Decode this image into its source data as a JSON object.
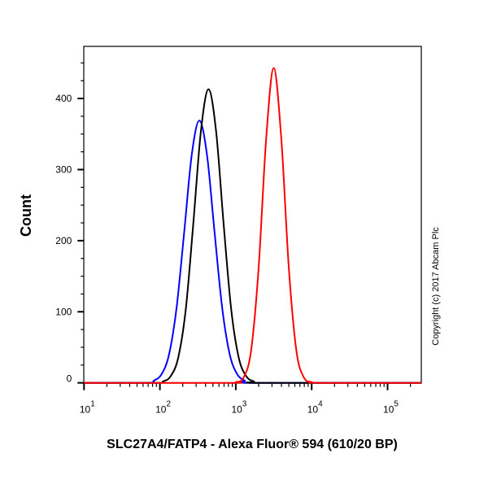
{
  "chart_data": {
    "type": "line",
    "title": "",
    "xlabel": "SLC27A4/FATP4 - Alexa Fluor® 594 (610/20 BP)",
    "ylabel": "Count",
    "xscale": "log",
    "xlim": [
      10,
      270000
    ],
    "ylim": [
      0,
      475
    ],
    "x_ticks": [
      {
        "base": "10",
        "exp": "1",
        "value": 10
      },
      {
        "base": "10",
        "exp": "2",
        "value": 100
      },
      {
        "base": "10",
        "exp": "3",
        "value": 1000
      },
      {
        "base": "10",
        "exp": "4",
        "value": 10000
      },
      {
        "base": "10",
        "exp": "5",
        "value": 100000
      }
    ],
    "y_ticks": [
      0,
      100,
      200,
      300,
      400
    ],
    "grid": false,
    "legend": "none",
    "series": [
      {
        "color": "#0000ff",
        "x": [
          83,
          105,
          132,
          166,
          209,
          263,
          331,
          417,
          525,
          661,
          832,
          1047,
          1318
        ],
        "y": [
          3,
          12,
          40,
          106,
          212,
          321,
          369,
          321,
          212,
          106,
          40,
          12,
          3
        ]
      },
      {
        "color": "#000000",
        "x": [
          110,
          138,
          174,
          219,
          275,
          347,
          437,
          550,
          692,
          871,
          1096,
          1380,
          1738
        ],
        "y": [
          2,
          9,
          35,
          103,
          223,
          354,
          413,
          354,
          223,
          103,
          35,
          9,
          2
        ]
      },
      {
        "color": "#ff0000",
        "x": [
          1000,
          1259,
          1585,
          1995,
          2512,
          3162,
          3981,
          5012,
          6310,
          7943,
          10000
        ],
        "y": [
          1,
          7,
          44,
          160,
          343,
          443,
          343,
          160,
          44,
          7,
          1
        ]
      }
    ]
  },
  "copyright": "Copyright (c) 2017 Abcam Plc"
}
